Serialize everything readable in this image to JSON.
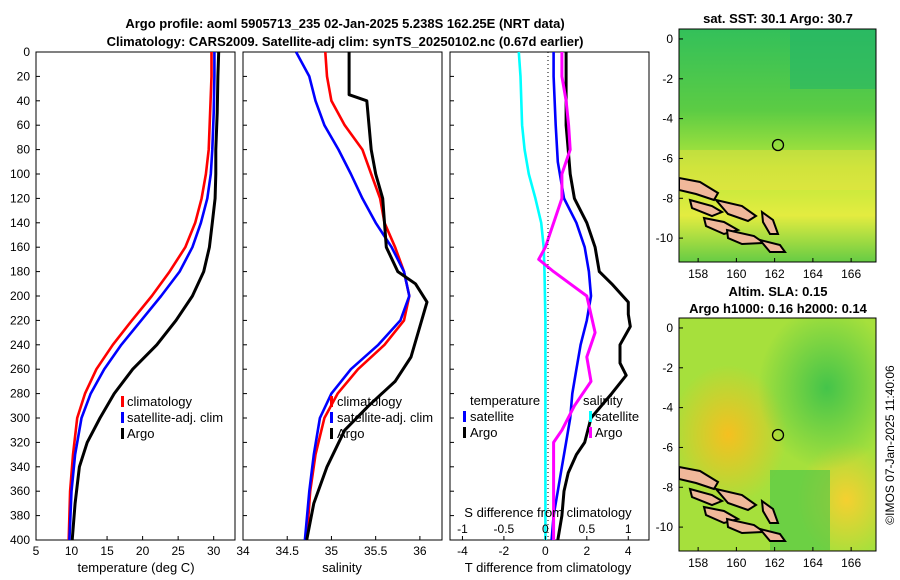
{
  "header": {
    "title_line1": "Argo profile: aoml 5905713_235 02-Jan-2025 5.238S 162.25E (NRT data)",
    "title_line2": "Climatology: CARS2009. Satellite-adj clim: synTS_20250102.nc (0.67d earlier)",
    "sst_title": "sat. SST: 30.1 Argo: 30.7",
    "sla_title_line1": "Altim. SLA: 0.15",
    "sla_title_line2": "Argo h1000: 0.16 h2000: 0.14",
    "timestamp": "©IMOS 07-Jan-2025 11:40:06"
  },
  "colors": {
    "climatology": "#ff0000",
    "satellite": "#0000ff",
    "argo": "#000000",
    "sat_diff_t": "#00ffff",
    "sal_diff": "#ff00ff",
    "land": "#f0b89a"
  },
  "chart_data": [
    {
      "id": "temperature",
      "type": "line",
      "xlabel": "temperature (deg C)",
      "ylabel": "",
      "xlim": [
        5,
        33
      ],
      "ylim": [
        400,
        0
      ],
      "xticks": [
        5,
        10,
        15,
        20,
        25,
        30
      ],
      "yticks": [
        0,
        20,
        40,
        60,
        80,
        100,
        120,
        140,
        160,
        180,
        200,
        220,
        240,
        260,
        280,
        300,
        320,
        340,
        360,
        380,
        400
      ],
      "legend": [
        "climatology",
        "satellite-adj. clim",
        "Argo"
      ],
      "series": [
        {
          "name": "climatology",
          "color": "#ff0000",
          "x": [
            29.7,
            29.7,
            29.5,
            29.3,
            28.9,
            28.3,
            27.4,
            26.0,
            23.8,
            21.3,
            18.5,
            15.8,
            13.5,
            11.9,
            10.8,
            10.2,
            9.8,
            9.6
          ],
          "y": [
            0,
            20,
            50,
            80,
            100,
            120,
            140,
            160,
            180,
            200,
            220,
            240,
            260,
            280,
            300,
            330,
            360,
            400
          ]
        },
        {
          "name": "satellite-adj. clim",
          "color": "#0000ff",
          "x": [
            30.1,
            30.1,
            30.0,
            29.8,
            29.6,
            29.1,
            28.2,
            27.0,
            25.2,
            22.6,
            19.8,
            17.0,
            14.6,
            12.7,
            11.4,
            10.5,
            10.0,
            9.7
          ],
          "y": [
            0,
            20,
            50,
            80,
            100,
            120,
            140,
            160,
            180,
            200,
            220,
            240,
            260,
            280,
            300,
            330,
            360,
            400
          ]
        },
        {
          "name": "Argo",
          "color": "#000000",
          "x": [
            30.7,
            30.6,
            30.5,
            30.3,
            30.3,
            30.2,
            29.8,
            29.4,
            28.6,
            27.0,
            24.7,
            22.0,
            18.6,
            16.0,
            14.0,
            12.2,
            11.1,
            10.5,
            10.1
          ],
          "y": [
            0,
            20,
            50,
            80,
            100,
            120,
            140,
            160,
            180,
            200,
            220,
            240,
            260,
            280,
            300,
            320,
            340,
            370,
            400
          ]
        }
      ]
    },
    {
      "id": "salinity",
      "type": "line",
      "xlabel": "salinity",
      "xlim": [
        34,
        36.25
      ],
      "ylim": [
        400,
        0
      ],
      "xticks": [
        34,
        34.5,
        35,
        35.5,
        36
      ],
      "legend": [
        "climatology",
        "satellite-adj. clim",
        "Argo"
      ],
      "series": [
        {
          "name": "climatology",
          "color": "#ff0000",
          "x": [
            34.93,
            34.95,
            35.0,
            35.15,
            35.35,
            35.45,
            35.55,
            35.6,
            35.72,
            35.82,
            35.88,
            35.82,
            35.6,
            35.3,
            35.07,
            34.92,
            34.82,
            34.76,
            34.72
          ],
          "y": [
            0,
            20,
            40,
            60,
            80,
            100,
            120,
            140,
            160,
            180,
            200,
            220,
            240,
            260,
            280,
            300,
            330,
            360,
            400
          ]
        },
        {
          "name": "satellite-adj. clim",
          "color": "#0000ff",
          "x": [
            34.6,
            34.75,
            34.82,
            34.92,
            35.08,
            35.22,
            35.35,
            35.5,
            35.68,
            35.82,
            35.88,
            35.78,
            35.53,
            35.22,
            35.0,
            34.87,
            34.8,
            34.75,
            34.7
          ],
          "y": [
            0,
            20,
            40,
            60,
            80,
            100,
            120,
            140,
            160,
            180,
            200,
            220,
            240,
            260,
            280,
            300,
            330,
            360,
            400
          ]
        },
        {
          "name": "Argo",
          "color": "#000000",
          "x": [
            35.2,
            35.2,
            35.2,
            35.4,
            35.45,
            35.5,
            35.58,
            35.62,
            35.75,
            35.95,
            36.08,
            36.0,
            35.9,
            35.72,
            35.42,
            35.15,
            34.95,
            34.8,
            34.72
          ],
          "y": [
            0,
            20,
            35,
            40,
            80,
            100,
            120,
            160,
            180,
            190,
            205,
            225,
            250,
            270,
            290,
            310,
            340,
            370,
            400
          ]
        }
      ]
    },
    {
      "id": "difference",
      "type": "line",
      "xlabel": "T difference from climatology",
      "xlabel_top": "S difference from climatology",
      "xlim": [
        -4.6,
        5.0
      ],
      "s_xlim": [
        -1.15,
        1.25
      ],
      "ylim": [
        400,
        0
      ],
      "xticks": [
        -4,
        -2,
        0,
        2,
        4
      ],
      "s_xticks": [
        -1,
        -0.5,
        0,
        0.5,
        1
      ],
      "s_xtick_labels": [
        "-1",
        "-0.5",
        "0",
        "0.5",
        "1"
      ],
      "legend_temperature_title": "temperature",
      "legend_salinity_title": "salinity",
      "legend": [
        "satellite",
        "Argo",
        "satellite",
        "Argo"
      ],
      "series": [
        {
          "name": "T satellite",
          "color": "#0000ff",
          "x": [
            0.4,
            0.4,
            0.5,
            0.6,
            0.9,
            1.5,
            1.9,
            2.1,
            2.2,
            2.0,
            1.7,
            1.5,
            1.3,
            1.2,
            1.0,
            0.8,
            0.6,
            0.4,
            0.3
          ],
          "y": [
            0,
            20,
            60,
            90,
            120,
            140,
            160,
            180,
            200,
            220,
            240,
            260,
            280,
            300,
            320,
            340,
            360,
            380,
            400
          ]
        },
        {
          "name": "T Argo",
          "color": "#000000",
          "x": [
            1.0,
            1.0,
            1.0,
            1.1,
            1.2,
            1.4,
            2.0,
            2.4,
            2.6,
            3.2,
            4.0,
            4.0,
            4.1,
            3.6,
            3.6,
            3.9,
            3.2,
            2.2,
            1.9,
            1.5,
            1.1,
            0.9,
            0.8,
            0.6
          ],
          "y": [
            0,
            20,
            60,
            80,
            100,
            120,
            140,
            160,
            180,
            190,
            205,
            215,
            225,
            240,
            255,
            265,
            280,
            300,
            320,
            330,
            345,
            360,
            380,
            400
          ]
        },
        {
          "name": "S satellite",
          "color": "#00ffff",
          "x": [
            -0.32,
            -0.3,
            -0.28,
            -0.25,
            -0.2,
            -0.12,
            -0.05,
            -0.02,
            -0.01,
            0.0,
            0.0,
            0.0,
            0.0,
            0.0
          ],
          "y": [
            0,
            20,
            60,
            80,
            100,
            120,
            140,
            160,
            180,
            220,
            260,
            300,
            350,
            400
          ]
        },
        {
          "name": "S Argo",
          "color": "#ff00ff",
          "x": [
            0.2,
            0.2,
            0.25,
            0.28,
            0.3,
            0.2,
            0.2,
            0.0,
            -0.08,
            0.1,
            0.3,
            0.5,
            0.6,
            0.5,
            0.55,
            0.35,
            0.2,
            0.1,
            0.1,
            0.1,
            0.1
          ],
          "y": [
            0,
            20,
            40,
            60,
            80,
            100,
            120,
            160,
            170,
            180,
            190,
            200,
            230,
            250,
            270,
            290,
            310,
            320,
            350,
            380,
            400
          ]
        }
      ]
    },
    {
      "id": "sst_map",
      "type": "heatmap",
      "title": "sat. SST: 30.1 Argo: 30.7",
      "xticks": [
        158,
        160,
        162,
        164,
        166
      ],
      "yticks": [
        0,
        -2,
        -4,
        -6,
        -8,
        -10
      ],
      "xlim": [
        157,
        167.3
      ],
      "ylim": [
        -11.2,
        0.5
      ],
      "marker": {
        "lon": 162.25,
        "lat": -5.24
      }
    },
    {
      "id": "sla_map",
      "type": "heatmap",
      "title": "Altim. SLA: 0.15",
      "xticks": [
        158,
        160,
        162,
        164,
        166
      ],
      "yticks": [
        0,
        -2,
        -4,
        -6,
        -8,
        -10
      ],
      "xlim": [
        157,
        167.3
      ],
      "ylim": [
        -11.2,
        0.5
      ],
      "marker": {
        "lon": 162.25,
        "lat": -5.24
      }
    }
  ]
}
